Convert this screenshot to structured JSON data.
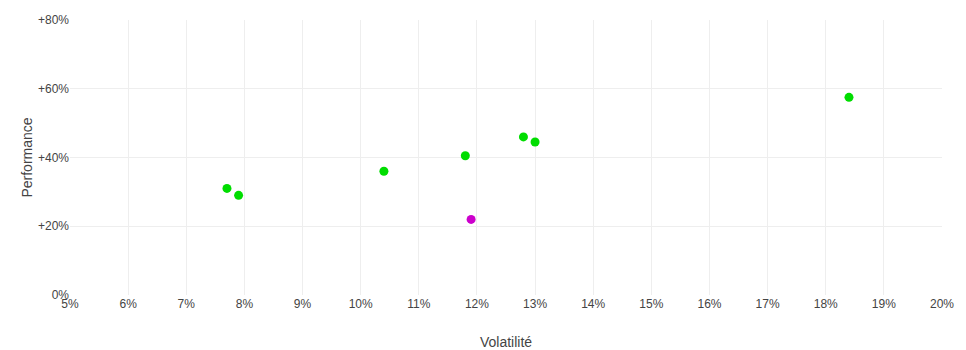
{
  "chart_data": {
    "type": "scatter",
    "xlabel": "Volatilité",
    "ylabel": "Performance",
    "x": [
      0.077,
      0.079,
      0.104,
      0.118,
      0.119,
      0.128,
      0.13,
      0.184
    ],
    "values": [
      0.31,
      0.29,
      0.36,
      0.405,
      0.22,
      0.46,
      0.445,
      0.575
    ],
    "colors": [
      "#00dd00",
      "#00dd00",
      "#00dd00",
      "#00dd00",
      "#cc00cc",
      "#00dd00",
      "#00dd00",
      "#00dd00"
    ],
    "xlim": [
      0.05,
      0.2
    ],
    "ylim": [
      0.0,
      0.8
    ],
    "xticks": [
      {
        "value": 0.05,
        "label": "5%"
      },
      {
        "value": 0.06,
        "label": "6%"
      },
      {
        "value": 0.07,
        "label": "7%"
      },
      {
        "value": 0.08,
        "label": "8%"
      },
      {
        "value": 0.09,
        "label": "9%"
      },
      {
        "value": 0.1,
        "label": "10%"
      },
      {
        "value": 0.11,
        "label": "11%"
      },
      {
        "value": 0.12,
        "label": "12%"
      },
      {
        "value": 0.13,
        "label": "13%"
      },
      {
        "value": 0.14,
        "label": "14%"
      },
      {
        "value": 0.15,
        "label": "15%"
      },
      {
        "value": 0.16,
        "label": "16%"
      },
      {
        "value": 0.17,
        "label": "17%"
      },
      {
        "value": 0.18,
        "label": "18%"
      },
      {
        "value": 0.19,
        "label": "19%"
      },
      {
        "value": 0.2,
        "label": "20%"
      }
    ],
    "yticks": [
      {
        "value": 0.0,
        "label": "0%"
      },
      {
        "value": 0.2,
        "label": "+20%"
      },
      {
        "value": 0.4,
        "label": "+40%"
      },
      {
        "value": 0.6,
        "label": "+60%"
      },
      {
        "value": 0.8,
        "label": "+80%"
      }
    ],
    "grid": true
  }
}
